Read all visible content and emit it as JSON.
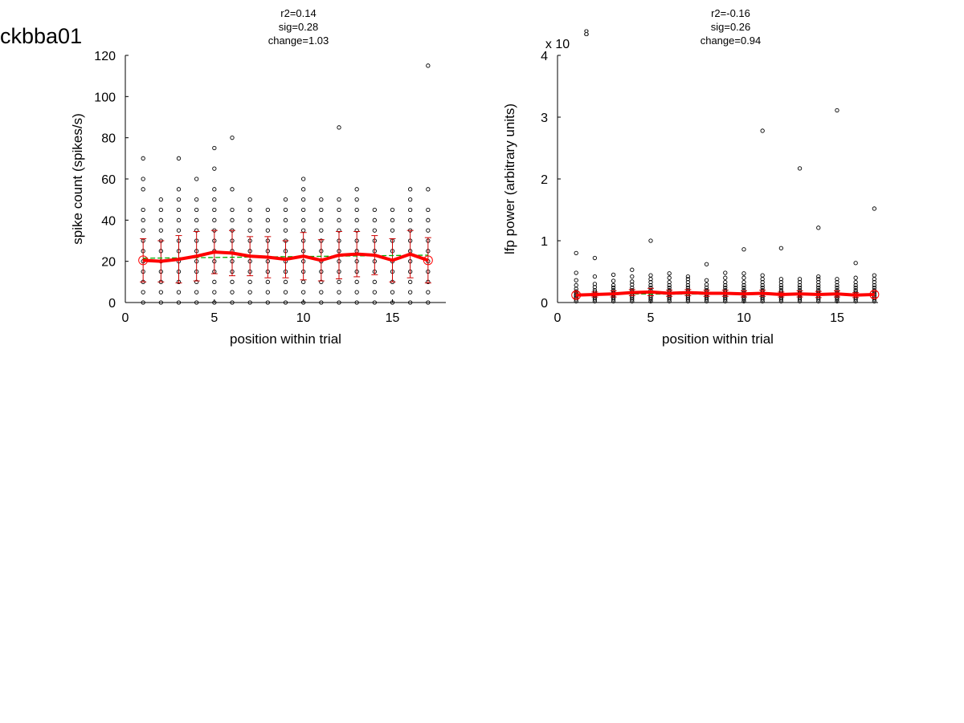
{
  "figure": {
    "cell_id": "ckbba01",
    "colors": {
      "points": "#000000",
      "mean_line": "#ff0000",
      "error_bars": "#cc0000",
      "mean_markers": "#ff0000",
      "fit_line": "#00aa00"
    }
  },
  "chart_data": [
    {
      "type": "scatter",
      "title_lines": [
        "r2=0.14",
        "sig=0.28",
        "change=1.03"
      ],
      "xlabel": "position within trial",
      "ylabel": "spike count (spikes/s)",
      "xlim": [
        0,
        18
      ],
      "ylim": [
        0,
        120
      ],
      "xticks": [
        0,
        5,
        10,
        15
      ],
      "yticks": [
        0,
        20,
        40,
        60,
        80,
        100,
        120
      ],
      "exponent_label": "",
      "points": [
        {
          "x": 1,
          "ys": [
            0,
            5,
            10,
            15,
            20,
            25,
            30,
            35,
            40,
            45,
            55,
            60,
            70
          ]
        },
        {
          "x": 2,
          "ys": [
            0,
            5,
            10,
            15,
            20,
            25,
            30,
            35,
            40,
            45,
            50
          ]
        },
        {
          "x": 3,
          "ys": [
            0,
            5,
            10,
            15,
            20,
            25,
            30,
            35,
            40,
            45,
            50,
            55,
            70
          ]
        },
        {
          "x": 4,
          "ys": [
            0,
            5,
            10,
            15,
            20,
            25,
            30,
            35,
            40,
            45,
            50,
            60
          ]
        },
        {
          "x": 5,
          "ys": [
            0,
            5,
            10,
            15,
            20,
            25,
            30,
            35,
            40,
            45,
            50,
            55,
            65,
            75
          ]
        },
        {
          "x": 6,
          "ys": [
            0,
            5,
            10,
            15,
            20,
            25,
            30,
            35,
            40,
            45,
            55,
            80
          ]
        },
        {
          "x": 7,
          "ys": [
            0,
            5,
            10,
            15,
            20,
            25,
            30,
            35,
            40,
            45,
            50
          ]
        },
        {
          "x": 8,
          "ys": [
            0,
            5,
            10,
            15,
            20,
            25,
            30,
            35,
            40,
            45
          ]
        },
        {
          "x": 9,
          "ys": [
            0,
            5,
            10,
            15,
            20,
            25,
            30,
            35,
            40,
            45,
            50
          ]
        },
        {
          "x": 10,
          "ys": [
            0,
            5,
            10,
            15,
            20,
            25,
            30,
            35,
            40,
            45,
            50,
            55,
            60
          ]
        },
        {
          "x": 11,
          "ys": [
            0,
            5,
            10,
            15,
            20,
            25,
            30,
            35,
            40,
            45,
            50
          ]
        },
        {
          "x": 12,
          "ys": [
            0,
            5,
            10,
            15,
            20,
            25,
            30,
            35,
            40,
            45,
            50,
            85
          ]
        },
        {
          "x": 13,
          "ys": [
            0,
            5,
            10,
            15,
            20,
            25,
            30,
            35,
            40,
            45,
            50,
            55
          ]
        },
        {
          "x": 14,
          "ys": [
            0,
            5,
            10,
            15,
            20,
            25,
            30,
            35,
            40,
            45
          ]
        },
        {
          "x": 15,
          "ys": [
            0,
            5,
            10,
            15,
            20,
            25,
            30,
            35,
            40,
            45
          ]
        },
        {
          "x": 16,
          "ys": [
            0,
            5,
            10,
            15,
            20,
            25,
            30,
            35,
            40,
            45,
            50,
            55
          ]
        },
        {
          "x": 17,
          "ys": [
            0,
            5,
            10,
            15,
            20,
            25,
            30,
            35,
            40,
            45,
            55,
            115
          ]
        }
      ],
      "mean": {
        "x": [
          1,
          2,
          3,
          4,
          5,
          6,
          7,
          8,
          9,
          10,
          11,
          12,
          13,
          14,
          15,
          16,
          17
        ],
        "y": [
          20.5,
          20,
          21,
          22.5,
          24.5,
          24,
          22.5,
          22,
          21,
          22.5,
          20.5,
          23,
          23.5,
          23,
          20.5,
          23.5,
          20.5
        ],
        "err": [
          10.5,
          10,
          11.5,
          12,
          10.5,
          11,
          9.5,
          10,
          9,
          11.5,
          10,
          11.5,
          11,
          9.5,
          10.5,
          11.5,
          11
        ]
      },
      "fit": {
        "x": [
          1,
          17
        ],
        "y": [
          21.5,
          23
        ]
      }
    },
    {
      "type": "scatter",
      "title_lines": [
        "r2=-0.16",
        "sig=0.26",
        "change=0.94"
      ],
      "xlabel": "position within trial",
      "ylabel": "lfp power (arbitrary units)",
      "xlim": [
        0,
        17.2
      ],
      "ylim": [
        0,
        4
      ],
      "xticks": [
        0,
        5,
        10,
        15
      ],
      "yticks": [
        0,
        1,
        2,
        3,
        4
      ],
      "exponent_label": "x 10",
      "exponent": "8",
      "points": [
        {
          "x": 1,
          "ys": [
            0.02,
            0.05,
            0.08,
            0.1,
            0.12,
            0.15,
            0.18,
            0.22,
            0.28,
            0.36,
            0.48,
            0.8
          ]
        },
        {
          "x": 2,
          "ys": [
            0.02,
            0.05,
            0.08,
            0.11,
            0.14,
            0.17,
            0.2,
            0.25,
            0.3,
            0.42,
            0.72
          ]
        },
        {
          "x": 3,
          "ys": [
            0.02,
            0.05,
            0.08,
            0.11,
            0.14,
            0.17,
            0.2,
            0.24,
            0.28,
            0.35,
            0.45
          ]
        },
        {
          "x": 4,
          "ys": [
            0.02,
            0.05,
            0.08,
            0.11,
            0.14,
            0.17,
            0.2,
            0.24,
            0.29,
            0.34,
            0.42,
            0.53
          ]
        },
        {
          "x": 5,
          "ys": [
            0.02,
            0.05,
            0.08,
            0.11,
            0.14,
            0.17,
            0.2,
            0.24,
            0.28,
            0.33,
            0.38,
            0.44,
            1.0
          ]
        },
        {
          "x": 6,
          "ys": [
            0.02,
            0.05,
            0.08,
            0.11,
            0.14,
            0.17,
            0.2,
            0.24,
            0.28,
            0.33,
            0.4,
            0.47
          ]
        },
        {
          "x": 7,
          "ys": [
            0.02,
            0.05,
            0.08,
            0.11,
            0.14,
            0.17,
            0.2,
            0.24,
            0.28,
            0.33,
            0.38,
            0.42
          ]
        },
        {
          "x": 8,
          "ys": [
            0.02,
            0.05,
            0.08,
            0.11,
            0.14,
            0.17,
            0.2,
            0.24,
            0.29,
            0.36,
            0.62
          ]
        },
        {
          "x": 9,
          "ys": [
            0.02,
            0.05,
            0.08,
            0.11,
            0.14,
            0.17,
            0.2,
            0.24,
            0.28,
            0.33,
            0.4,
            0.48
          ]
        },
        {
          "x": 10,
          "ys": [
            0.02,
            0.05,
            0.08,
            0.11,
            0.14,
            0.17,
            0.2,
            0.24,
            0.28,
            0.33,
            0.4,
            0.47,
            0.86
          ]
        },
        {
          "x": 11,
          "ys": [
            0.02,
            0.05,
            0.08,
            0.11,
            0.14,
            0.17,
            0.2,
            0.24,
            0.28,
            0.33,
            0.38,
            0.44,
            2.78
          ]
        },
        {
          "x": 12,
          "ys": [
            0.02,
            0.05,
            0.08,
            0.11,
            0.14,
            0.17,
            0.2,
            0.24,
            0.28,
            0.33,
            0.38,
            0.88
          ]
        },
        {
          "x": 13,
          "ys": [
            0.02,
            0.05,
            0.08,
            0.11,
            0.14,
            0.17,
            0.2,
            0.24,
            0.28,
            0.33,
            0.38,
            2.17
          ]
        },
        {
          "x": 14,
          "ys": [
            0.02,
            0.05,
            0.08,
            0.11,
            0.14,
            0.17,
            0.2,
            0.24,
            0.28,
            0.33,
            0.38,
            0.42,
            1.21
          ]
        },
        {
          "x": 15,
          "ys": [
            0.02,
            0.05,
            0.08,
            0.11,
            0.14,
            0.17,
            0.2,
            0.24,
            0.28,
            0.33,
            0.38,
            3.11
          ]
        },
        {
          "x": 16,
          "ys": [
            0.02,
            0.05,
            0.08,
            0.11,
            0.14,
            0.17,
            0.2,
            0.24,
            0.28,
            0.33,
            0.4,
            0.64
          ]
        },
        {
          "x": 17,
          "ys": [
            0.02,
            0.05,
            0.08,
            0.11,
            0.14,
            0.17,
            0.2,
            0.24,
            0.28,
            0.33,
            0.38,
            0.44,
            1.52
          ]
        }
      ],
      "mean": {
        "x": [
          1,
          2,
          3,
          4,
          5,
          6,
          7,
          8,
          9,
          10,
          11,
          12,
          13,
          14,
          15,
          16,
          17
        ],
        "y": [
          0.12,
          0.13,
          0.14,
          0.16,
          0.17,
          0.15,
          0.16,
          0.15,
          0.15,
          0.14,
          0.15,
          0.13,
          0.14,
          0.13,
          0.14,
          0.12,
          0.13
        ],
        "err": [
          0.05,
          0.04,
          0.05,
          0.05,
          0.06,
          0.05,
          0.05,
          0.05,
          0.05,
          0.05,
          0.05,
          0.04,
          0.05,
          0.05,
          0.05,
          0.04,
          0.05
        ]
      },
      "fit": {
        "x": [
          1,
          17
        ],
        "y": [
          0.14,
          0.13
        ]
      }
    }
  ]
}
